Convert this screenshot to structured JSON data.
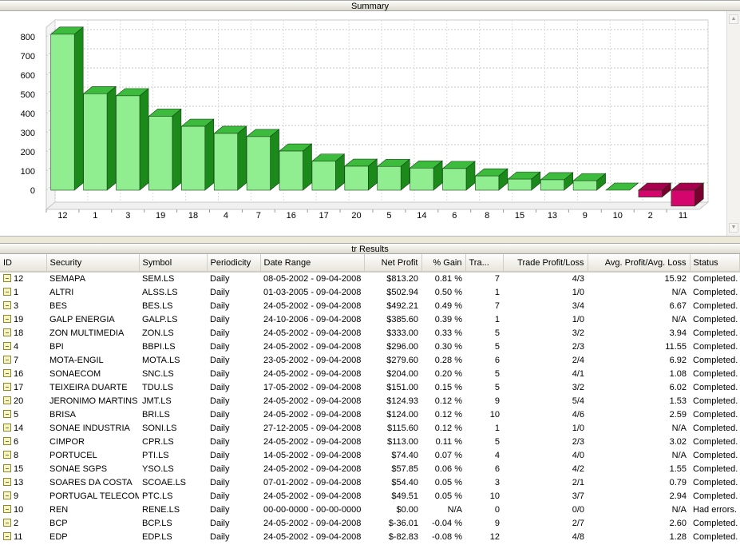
{
  "summary": {
    "title": "Summary"
  },
  "results": {
    "title": "tr Results"
  },
  "colors": {
    "positive_bar": "#90ee90",
    "positive_dark": "#1b8a1b",
    "negative_bar": "#d4066e",
    "negative_dark": "#7a0030"
  },
  "chart_data": {
    "type": "bar",
    "categories": [
      "12",
      "1",
      "3",
      "19",
      "18",
      "4",
      "7",
      "16",
      "17",
      "20",
      "5",
      "14",
      "6",
      "8",
      "15",
      "13",
      "9",
      "10",
      "2",
      "11"
    ],
    "values": [
      813.2,
      502.94,
      492.21,
      385.6,
      333.0,
      296.0,
      279.6,
      204.0,
      151.0,
      124.93,
      124.0,
      115.6,
      113.0,
      74.4,
      57.85,
      54.4,
      49.51,
      0.0,
      -36.01,
      -82.83
    ],
    "ylim": [
      -100,
      850
    ],
    "yticks": [
      0,
      100,
      200,
      300,
      400,
      500,
      600,
      700,
      800
    ],
    "grid": true,
    "legend": "none"
  },
  "table": {
    "columns": [
      "ID",
      "Security",
      "Symbol",
      "Periodicity",
      "Date Range",
      "Net Profit",
      "% Gain",
      "Tra...",
      "Trade Profit/Loss",
      "Avg. Profit/Avg. Loss",
      "Status"
    ],
    "rows": [
      [
        "12",
        "SEMAPA",
        "SEM.LS",
        "Daily",
        "08-05-2002 - 09-04-2008",
        "$813.20",
        "0.81 %",
        "7",
        "4/3",
        "15.92",
        "Completed."
      ],
      [
        "1",
        "ALTRI",
        "ALSS.LS",
        "Daily",
        "01-03-2005 - 09-04-2008",
        "$502.94",
        "0.50 %",
        "1",
        "1/0",
        "N/A",
        "Completed."
      ],
      [
        "3",
        "BES",
        "BES.LS",
        "Daily",
        "24-05-2002 - 09-04-2008",
        "$492.21",
        "0.49 %",
        "7",
        "3/4",
        "6.67",
        "Completed."
      ],
      [
        "19",
        "GALP ENERGIA",
        "GALP.LS",
        "Daily",
        "24-10-2006 - 09-04-2008",
        "$385.60",
        "0.39 %",
        "1",
        "1/0",
        "N/A",
        "Completed."
      ],
      [
        "18",
        "ZON MULTIMEDIA",
        "ZON.LS",
        "Daily",
        "24-05-2002 - 09-04-2008",
        "$333.00",
        "0.33 %",
        "5",
        "3/2",
        "3.94",
        "Completed."
      ],
      [
        "4",
        "BPI",
        "BBPI.LS",
        "Daily",
        "24-05-2002 - 09-04-2008",
        "$296.00",
        "0.30 %",
        "5",
        "2/3",
        "11.55",
        "Completed."
      ],
      [
        "7",
        "MOTA-ENGIL",
        "MOTA.LS",
        "Daily",
        "23-05-2002 - 09-04-2008",
        "$279.60",
        "0.28 %",
        "6",
        "2/4",
        "6.92",
        "Completed."
      ],
      [
        "16",
        "SONAECOM",
        "SNC.LS",
        "Daily",
        "24-05-2002 - 09-04-2008",
        "$204.00",
        "0.20 %",
        "5",
        "4/1",
        "1.08",
        "Completed."
      ],
      [
        "17",
        "TEIXEIRA DUARTE",
        "TDU.LS",
        "Daily",
        "17-05-2002 - 09-04-2008",
        "$151.00",
        "0.15 %",
        "5",
        "3/2",
        "6.02",
        "Completed."
      ],
      [
        "20",
        "JERONIMO MARTINS",
        "JMT.LS",
        "Daily",
        "24-05-2002 - 09-04-2008",
        "$124.93",
        "0.12 %",
        "9",
        "5/4",
        "1.53",
        "Completed."
      ],
      [
        "5",
        "BRISA",
        "BRI.LS",
        "Daily",
        "24-05-2002 - 09-04-2008",
        "$124.00",
        "0.12 %",
        "10",
        "4/6",
        "2.59",
        "Completed."
      ],
      [
        "14",
        "SONAE INDUSTRIA",
        "SONI.LS",
        "Daily",
        "27-12-2005 - 09-04-2008",
        "$115.60",
        "0.12 %",
        "1",
        "1/0",
        "N/A",
        "Completed."
      ],
      [
        "6",
        "CIMPOR",
        "CPR.LS",
        "Daily",
        "24-05-2002 - 09-04-2008",
        "$113.00",
        "0.11 %",
        "5",
        "2/3",
        "3.02",
        "Completed."
      ],
      [
        "8",
        "PORTUCEL",
        "PTI.LS",
        "Daily",
        "14-05-2002 - 09-04-2008",
        "$74.40",
        "0.07 %",
        "4",
        "4/0",
        "N/A",
        "Completed."
      ],
      [
        "15",
        "SONAE SGPS",
        "YSO.LS",
        "Daily",
        "24-05-2002 - 09-04-2008",
        "$57.85",
        "0.06 %",
        "6",
        "4/2",
        "1.55",
        "Completed."
      ],
      [
        "13",
        "SOARES DA COSTA",
        "SCOAE.LS",
        "Daily",
        "07-01-2002 - 09-04-2008",
        "$54.40",
        "0.05 %",
        "3",
        "2/1",
        "0.79",
        "Completed."
      ],
      [
        "9",
        "PORTUGAL TELECOM",
        "PTC.LS",
        "Daily",
        "24-05-2002 - 09-04-2008",
        "$49.51",
        "0.05 %",
        "10",
        "3/7",
        "2.94",
        "Completed."
      ],
      [
        "10",
        "REN",
        "RENE.LS",
        "Daily",
        "00-00-0000 - 00-00-0000",
        "$0.00",
        "N/A",
        "0",
        "0/0",
        "N/A",
        "Had errors."
      ],
      [
        "2",
        "BCP",
        "BCP.LS",
        "Daily",
        "24-05-2002 - 09-04-2008",
        "$-36.01",
        "-0.04 %",
        "9",
        "2/7",
        "2.60",
        "Completed."
      ],
      [
        "11",
        "EDP",
        "EDP.LS",
        "Daily",
        "24-05-2002 - 09-04-2008",
        "$-82.83",
        "-0.08 %",
        "12",
        "4/8",
        "1.28",
        "Completed."
      ]
    ]
  }
}
